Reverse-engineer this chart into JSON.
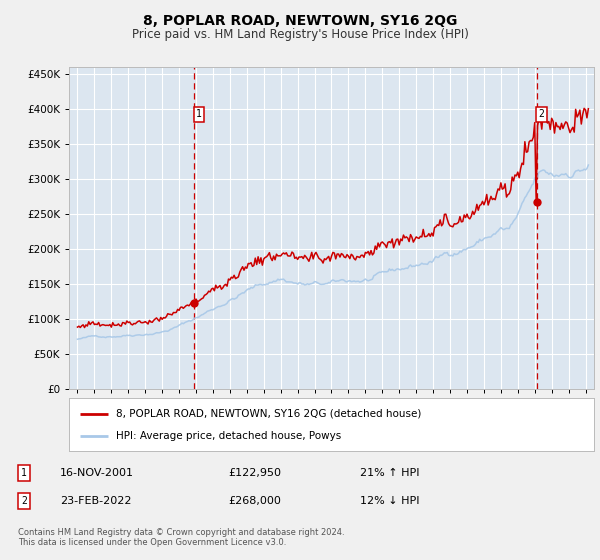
{
  "title": "8, POPLAR ROAD, NEWTOWN, SY16 2QG",
  "subtitle": "Price paid vs. HM Land Registry's House Price Index (HPI)",
  "legend_line1": "8, POPLAR ROAD, NEWTOWN, SY16 2QG (detached house)",
  "legend_line2": "HPI: Average price, detached house, Powys",
  "footnote": "Contains HM Land Registry data © Crown copyright and database right 2024.\nThis data is licensed under the Open Government Licence v3.0.",
  "transaction1_date": "16-NOV-2001",
  "transaction1_price": "£122,950",
  "transaction1_hpi": "21% ↑ HPI",
  "transaction2_date": "23-FEB-2022",
  "transaction2_price": "£268,000",
  "transaction2_hpi": "12% ↓ HPI",
  "transaction1_x": 2001.88,
  "transaction2_x": 2022.12,
  "transaction1_price_val": 122950,
  "transaction2_price_val": 268000,
  "ylim_min": 0,
  "ylim_max": 460000,
  "xlim_min": 1994.5,
  "xlim_max": 2025.5,
  "plot_bg_color": "#dce6f0",
  "fig_bg_color": "#f0f0f0",
  "red_line_color": "#cc0000",
  "blue_line_color": "#a8c8e8",
  "grid_color": "#ffffff",
  "vline_color": "#cc0000",
  "box_color": "#cc0000"
}
